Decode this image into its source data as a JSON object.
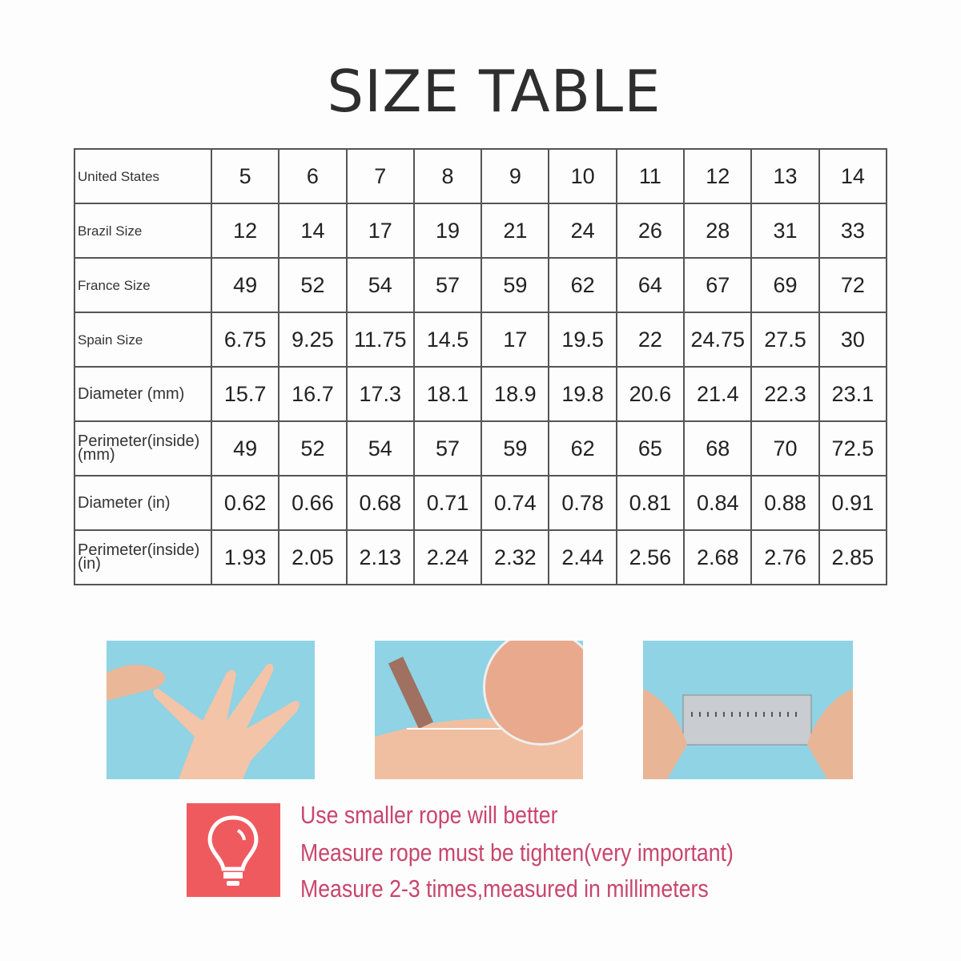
{
  "title": "SIZE TABLE",
  "table": {
    "rows": [
      {
        "label": "United States",
        "values": [
          "5",
          "6",
          "7",
          "8",
          "9",
          "10",
          "11",
          "12",
          "13",
          "14"
        ]
      },
      {
        "label": "Brazil Size",
        "values": [
          "12",
          "14",
          "17",
          "19",
          "21",
          "24",
          "26",
          "28",
          "31",
          "33"
        ]
      },
      {
        "label": "France Size",
        "values": [
          "49",
          "52",
          "54",
          "57",
          "59",
          "62",
          "64",
          "67",
          "69",
          "72"
        ]
      },
      {
        "label": "Spain Size",
        "values": [
          "6.75",
          "9.25",
          "11.75",
          "14.5",
          "17",
          "19.5",
          "22",
          "24.75",
          "27.5",
          "30"
        ]
      },
      {
        "label": "Diameter (mm)",
        "values": [
          "15.7",
          "16.7",
          "17.3",
          "18.1",
          "18.9",
          "19.8",
          "20.6",
          "21.4",
          "22.3",
          "23.1"
        ]
      },
      {
        "label": "Perimeter(inside) (mm)",
        "values": [
          "49",
          "52",
          "54",
          "57",
          "59",
          "62",
          "65",
          "68",
          "70",
          "72.5"
        ]
      },
      {
        "label": "Diameter (in)",
        "values": [
          "0.62",
          "0.66",
          "0.68",
          "0.71",
          "0.74",
          "0.78",
          "0.81",
          "0.84",
          "0.88",
          "0.91"
        ]
      },
      {
        "label": "Perimeter(inside) (in)",
        "values": [
          "1.93",
          "2.05",
          "2.13",
          "2.24",
          "2.32",
          "2.44",
          "2.56",
          "2.68",
          "2.76",
          "2.85"
        ]
      }
    ]
  },
  "photos": [
    "hand-finger-photo",
    "marking-rope-photo",
    "ruler-measure-photo"
  ],
  "tips": {
    "icon": "lightbulb-icon",
    "lines": [
      "Use smaller rope will better",
      "Measure rope must be tighten(very important)",
      "Measure 2-3 times,measured in millimeters"
    ]
  },
  "colors": {
    "accent": "#ef5a5f",
    "tip_text": "#c9456e",
    "photo_bg": "#8fd3e4"
  }
}
